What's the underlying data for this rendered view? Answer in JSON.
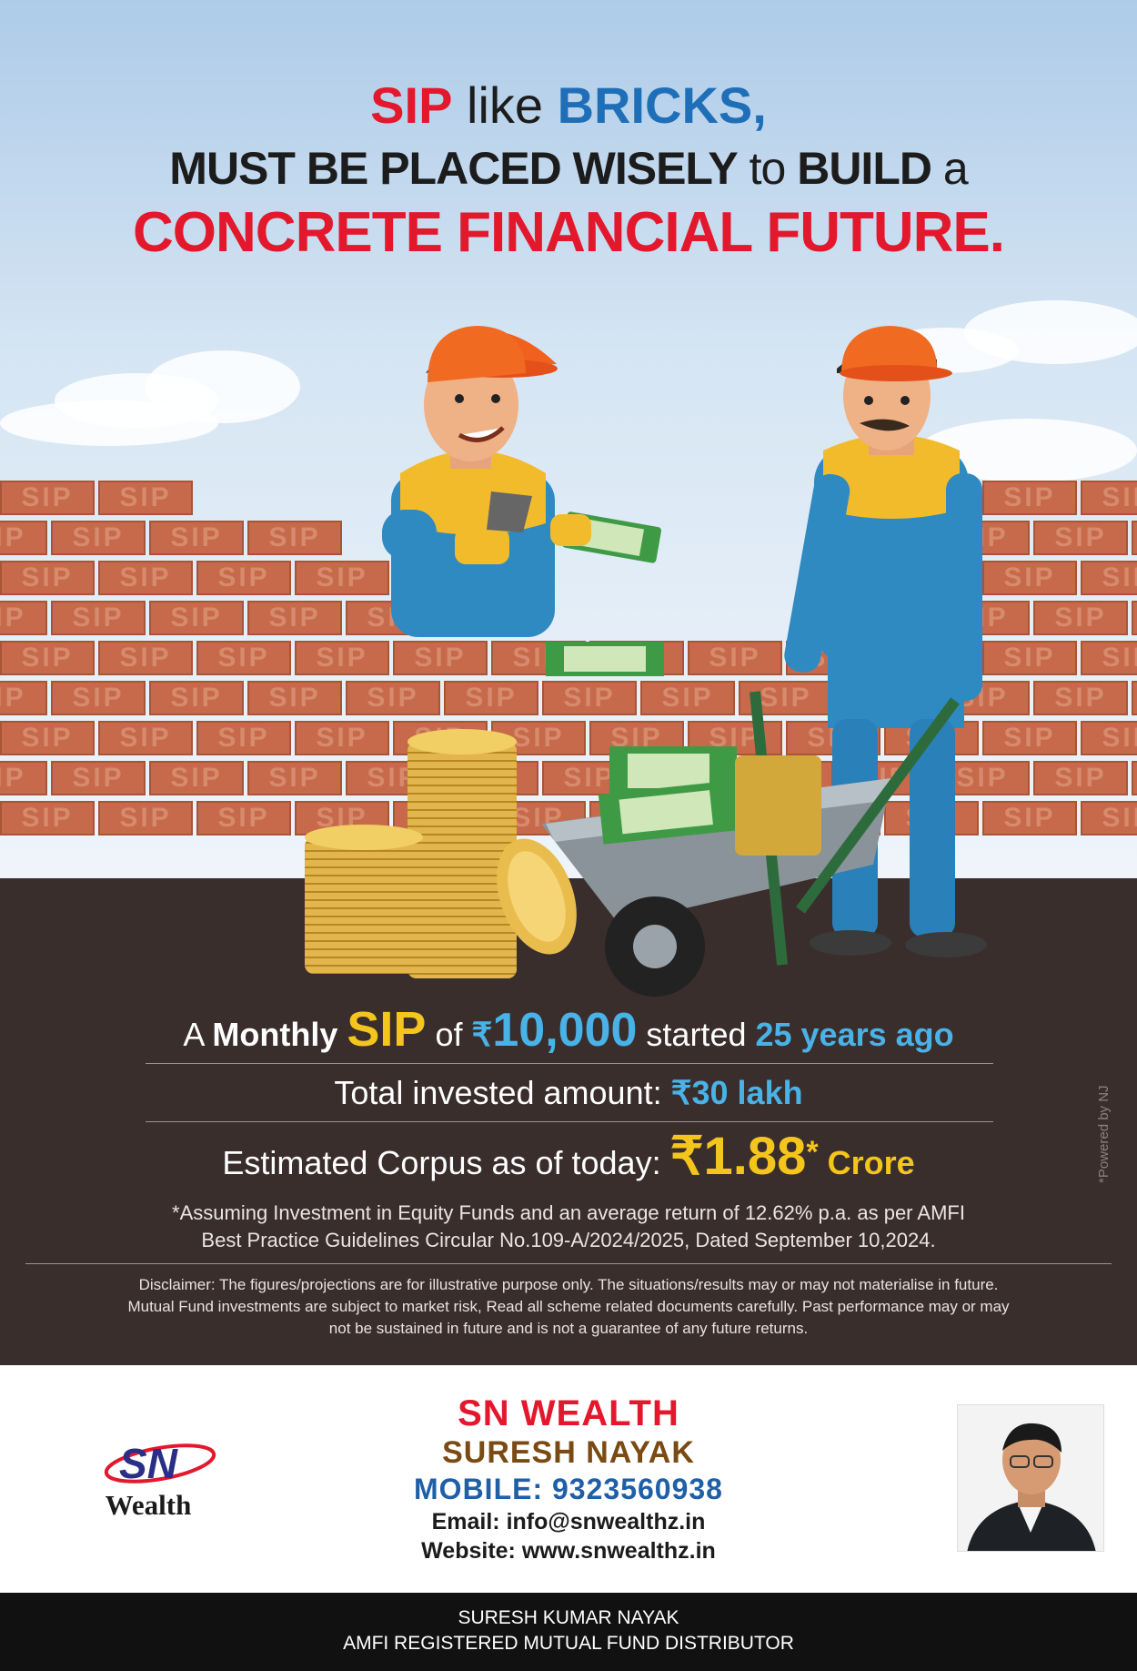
{
  "headline": {
    "line1_a": "SIP",
    "line1_b": " like ",
    "line1_c": "BRICKS,",
    "line2_a": "MUST BE PLACED WISELY",
    "line2_b": " to ",
    "line2_c": "BUILD",
    "line2_d": " a",
    "line3": "CONCRETE FINANCIAL FUTURE."
  },
  "brick_label": "SIP",
  "info": {
    "row1_a": "A ",
    "row1_b": "Monthly",
    "row1_c": "SIP",
    "row1_d": " of ",
    "row1_rupee": "₹",
    "row1_amount": "10,000",
    "row1_e": " started ",
    "row1_f": "25 years ago",
    "row2_a": "Total invested amount: ",
    "row2_b": "₹30 lakh",
    "row3_a": "Estimated Corpus as of today: ",
    "row3_b": "₹1.88",
    "row3_star": "*",
    "row3_c": " Crore",
    "note1": "*Assuming Investment in Equity Funds and an average return of 12.62% p.a. as per AMFI",
    "note2": "Best Practice  Guidelines Circular No.109-A/2024/2025, Dated September 10,2024.",
    "disclaimer1": "Disclaimer: The figures/projections are for illustrative purpose only. The situations/results may or may not materialise in future.",
    "disclaimer2": "Mutual Fund investments are subject to market risk, Read all scheme related documents carefully. Past performance may or may",
    "disclaimer3": "not be sustained in future and is not a guarantee of any future returns.",
    "powered": "*Powered by NJ"
  },
  "footer": {
    "logo_mark": "SN",
    "logo_word": "Wealth",
    "company": "SN WEALTH",
    "name": "SURESH NAYAK",
    "mobile": "MOBILE: 9323560938",
    "email": "Email: info@snwealthz.in",
    "website": "Website: www.snwealthz.in",
    "strip1": "SURESH KUMAR NAYAK",
    "strip2": "AMFI REGISTERED MUTUAL FUND DISTRIBUTOR"
  },
  "colors": {
    "red": "#e3182d",
    "blue": "#1f6fb8",
    "gold": "#f4c51c",
    "sky_blue": "#49b2e6",
    "ground": "#3a2e2d",
    "brick": "#c66a4b"
  }
}
